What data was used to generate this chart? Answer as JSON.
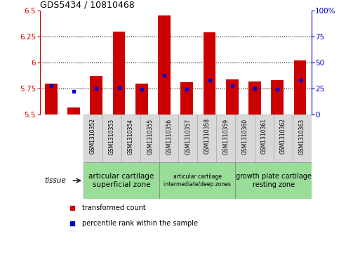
{
  "title": "GDS5434 / 10810468",
  "samples": [
    "GSM1310352",
    "GSM1310353",
    "GSM1310354",
    "GSM1310355",
    "GSM1310356",
    "GSM1310357",
    "GSM1310358",
    "GSM1310359",
    "GSM1310360",
    "GSM1310361",
    "GSM1310362",
    "GSM1310363"
  ],
  "red_values": [
    5.8,
    5.57,
    5.87,
    6.3,
    5.8,
    6.45,
    5.81,
    6.29,
    5.84,
    5.82,
    5.83,
    6.02
  ],
  "blue_values": [
    28,
    22,
    25,
    26,
    24,
    38,
    24,
    33,
    28,
    25,
    24,
    33
  ],
  "ylim_left": [
    5.5,
    6.5
  ],
  "ylim_right": [
    0,
    100
  ],
  "yticks_left": [
    5.5,
    5.75,
    6.0,
    6.25,
    6.5
  ],
  "yticks_right": [
    0,
    25,
    50,
    75,
    100
  ],
  "ytick_labels_left": [
    "5.5",
    "5.75",
    "6",
    "6.25",
    "6.5"
  ],
  "ytick_labels_right": [
    "0",
    "25",
    "50",
    "75",
    "100%"
  ],
  "left_color": "#cc0000",
  "right_color": "#0000cc",
  "bar_color": "#cc0000",
  "dot_color": "#0000cc",
  "dotted_grid_yticks": [
    5.75,
    6.0,
    6.25
  ],
  "group_configs": [
    {
      "indices": [
        0,
        1,
        2,
        3
      ],
      "label": "articular cartilage\nsuperficial zone",
      "color": "#99dd99",
      "fontsize": 7.5
    },
    {
      "indices": [
        4,
        5,
        6,
        7
      ],
      "label": "articular cartilage\nintermediate/deep zones",
      "color": "#99dd99",
      "fontsize": 5.5
    },
    {
      "indices": [
        8,
        9,
        10,
        11
      ],
      "label": "growth plate cartilage\nresting zone",
      "color": "#99dd99",
      "fontsize": 7.0
    }
  ],
  "legend_items": [
    {
      "label": "transformed count",
      "color": "#cc0000"
    },
    {
      "label": "percentile rank within the sample",
      "color": "#0000cc"
    }
  ],
  "tissue_label": "tissue",
  "sample_label_bg": "#d8d8d8",
  "sample_label_border": "#aaaaaa"
}
